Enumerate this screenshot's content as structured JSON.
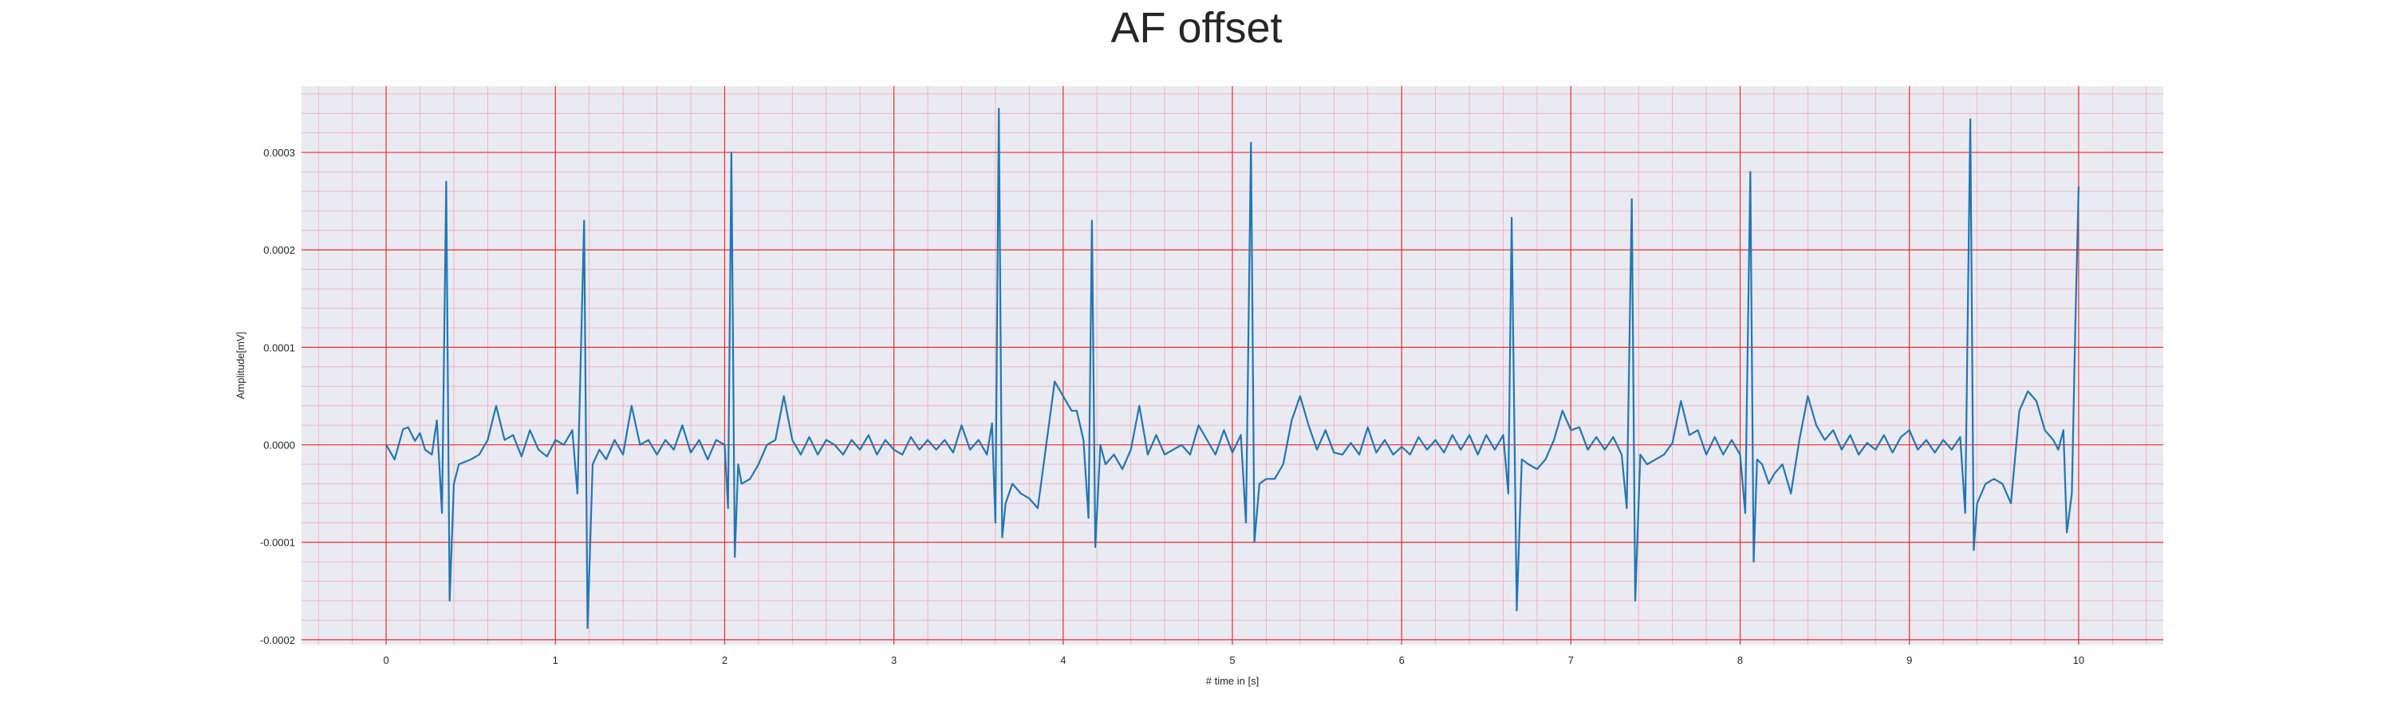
{
  "chart_data": {
    "type": "line",
    "title": "AF offset",
    "xlabel": "# time in [s]",
    "ylabel": "Amplitude[mV]",
    "xlim": [
      -0.5,
      10.5
    ],
    "ylim": [
      -0.000205,
      0.000368
    ],
    "x_ticks": [
      0,
      1,
      2,
      3,
      4,
      5,
      6,
      7,
      8,
      9,
      10
    ],
    "x_tick_labels": [
      "0",
      "1",
      "2",
      "3",
      "4",
      "5",
      "6",
      "7",
      "8",
      "9",
      "10"
    ],
    "y_ticks": [
      -0.0002,
      -0.0001,
      0.0,
      0.0001,
      0.0002,
      0.0003
    ],
    "y_tick_labels": [
      "-0.0002",
      "-0.0001",
      "0.0000",
      "0.0001",
      "0.0002",
      "0.0003"
    ],
    "grid": "major and minor",
    "colors": {
      "background": "#eaeaf2",
      "major_grid": "#e8302b",
      "minor_grid": "#f2a9b4",
      "line": "#1f77b4",
      "text": "#262626"
    },
    "series": [
      {
        "values": [
          [
            0.0,
            0.0
          ],
          [
            0.05,
            -1.5e-05
          ],
          [
            0.1,
            1.6e-05
          ],
          [
            0.13,
            1.8e-05
          ],
          [
            0.17,
            4e-06
          ],
          [
            0.2,
            1.2e-05
          ],
          [
            0.23,
            -5e-06
          ],
          [
            0.27,
            -1e-05
          ],
          [
            0.3,
            2.5e-05
          ],
          [
            0.33,
            -7e-05
          ],
          [
            0.355,
            0.00027
          ],
          [
            0.375,
            -0.00016
          ],
          [
            0.4,
            -4e-05
          ],
          [
            0.43,
            -2e-05
          ],
          [
            0.5,
            -1.5e-05
          ],
          [
            0.55,
            -1e-05
          ],
          [
            0.6,
            5e-06
          ],
          [
            0.65,
            4e-05
          ],
          [
            0.7,
            5e-06
          ],
          [
            0.75,
            1e-05
          ],
          [
            0.8,
            -1.2e-05
          ],
          [
            0.85,
            1.5e-05
          ],
          [
            0.9,
            -5e-06
          ],
          [
            0.95,
            -1.2e-05
          ],
          [
            1.0,
            5e-06
          ],
          [
            1.05,
            0.0
          ],
          [
            1.1,
            1.5e-05
          ],
          [
            1.13,
            -5e-05
          ],
          [
            1.17,
            0.00023
          ],
          [
            1.19,
            -0.000188
          ],
          [
            1.22,
            -2e-05
          ],
          [
            1.26,
            -5e-06
          ],
          [
            1.3,
            -1.5e-05
          ],
          [
            1.35,
            5e-06
          ],
          [
            1.4,
            -1e-05
          ],
          [
            1.45,
            4e-05
          ],
          [
            1.5,
            0.0
          ],
          [
            1.55,
            5e-06
          ],
          [
            1.6,
            -1e-05
          ],
          [
            1.65,
            5e-06
          ],
          [
            1.7,
            -5e-06
          ],
          [
            1.75,
            2e-05
          ],
          [
            1.8,
            -8e-06
          ],
          [
            1.85,
            5e-06
          ],
          [
            1.9,
            -1.5e-05
          ],
          [
            1.95,
            5e-06
          ],
          [
            2.0,
            0.0
          ],
          [
            2.02,
            -6.5e-05
          ],
          [
            2.04,
            0.0003
          ],
          [
            2.06,
            -0.000115
          ],
          [
            2.08,
            -2e-05
          ],
          [
            2.1,
            -4e-05
          ],
          [
            2.15,
            -3.5e-05
          ],
          [
            2.2,
            -2e-05
          ],
          [
            2.25,
            0.0
          ],
          [
            2.3,
            5e-06
          ],
          [
            2.35,
            5e-05
          ],
          [
            2.4,
            5e-06
          ],
          [
            2.45,
            -1e-05
          ],
          [
            2.5,
            8e-06
          ],
          [
            2.55,
            -1e-05
          ],
          [
            2.6,
            5e-06
          ],
          [
            2.65,
            0.0
          ],
          [
            2.7,
            -1e-05
          ],
          [
            2.75,
            5e-06
          ],
          [
            2.8,
            -5e-06
          ],
          [
            2.85,
            1e-05
          ],
          [
            2.9,
            -1e-05
          ],
          [
            2.95,
            5e-06
          ],
          [
            3.0,
            -5e-06
          ],
          [
            3.05,
            -1e-05
          ],
          [
            3.1,
            8e-06
          ],
          [
            3.15,
            -5e-06
          ],
          [
            3.2,
            5e-06
          ],
          [
            3.25,
            -5e-06
          ],
          [
            3.3,
            5e-06
          ],
          [
            3.35,
            -8e-06
          ],
          [
            3.4,
            2e-05
          ],
          [
            3.45,
            -5e-06
          ],
          [
            3.5,
            5e-06
          ],
          [
            3.55,
            -1e-05
          ],
          [
            3.58,
            2.2e-05
          ],
          [
            3.6,
            -8e-05
          ],
          [
            3.62,
            0.000345
          ],
          [
            3.64,
            -9.5e-05
          ],
          [
            3.66,
            -6e-05
          ],
          [
            3.7,
            -4e-05
          ],
          [
            3.75,
            -5e-05
          ],
          [
            3.8,
            -5.5e-05
          ],
          [
            3.85,
            -6.5e-05
          ],
          [
            3.9,
            0.0
          ],
          [
            3.95,
            6.5e-05
          ],
          [
            4.0,
            5e-05
          ],
          [
            4.05,
            3.5e-05
          ],
          [
            4.08,
            3.5e-05
          ],
          [
            4.12,
            5e-06
          ],
          [
            4.15,
            -7.5e-05
          ],
          [
            4.17,
            0.00023
          ],
          [
            4.19,
            -0.000105
          ],
          [
            4.22,
            0.0
          ],
          [
            4.25,
            -2e-05
          ],
          [
            4.3,
            -1e-05
          ],
          [
            4.35,
            -2.5e-05
          ],
          [
            4.4,
            -5e-06
          ],
          [
            4.45,
            4e-05
          ],
          [
            4.5,
            -1e-05
          ],
          [
            4.55,
            1e-05
          ],
          [
            4.6,
            -1e-05
          ],
          [
            4.65,
            -5e-06
          ],
          [
            4.7,
            0.0
          ],
          [
            4.75,
            -1e-05
          ],
          [
            4.8,
            2e-05
          ],
          [
            4.85,
            5e-06
          ],
          [
            4.9,
            -1e-05
          ],
          [
            4.95,
            1.5e-05
          ],
          [
            5.0,
            -8e-06
          ],
          [
            5.05,
            1e-05
          ],
          [
            5.08,
            -8e-05
          ],
          [
            5.11,
            0.00031
          ],
          [
            5.13,
            -0.0001
          ],
          [
            5.16,
            -4e-05
          ],
          [
            5.2,
            -3.5e-05
          ],
          [
            5.25,
            -3.5e-05
          ],
          [
            5.3,
            -2e-05
          ],
          [
            5.35,
            2.5e-05
          ],
          [
            5.4,
            5e-05
          ],
          [
            5.45,
            2e-05
          ],
          [
            5.5,
            -5e-06
          ],
          [
            5.55,
            1.5e-05
          ],
          [
            5.6,
            -8e-06
          ],
          [
            5.65,
            -1e-05
          ],
          [
            5.7,
            2e-06
          ],
          [
            5.75,
            -1e-05
          ],
          [
            5.8,
            1.8e-05
          ],
          [
            5.85,
            -8e-06
          ],
          [
            5.9,
            5e-06
          ],
          [
            5.95,
            -1e-05
          ],
          [
            6.0,
            -2e-06
          ],
          [
            6.05,
            -1e-05
          ],
          [
            6.1,
            8e-06
          ],
          [
            6.15,
            -5e-06
          ],
          [
            6.2,
            5e-06
          ],
          [
            6.25,
            -8e-06
          ],
          [
            6.3,
            1e-05
          ],
          [
            6.35,
            -5e-06
          ],
          [
            6.4,
            1e-05
          ],
          [
            6.45,
            -1e-05
          ],
          [
            6.5,
            1e-05
          ],
          [
            6.55,
            -5e-06
          ],
          [
            6.6,
            1e-05
          ],
          [
            6.63,
            -5e-05
          ],
          [
            6.65,
            0.000233
          ],
          [
            6.68,
            -0.00017
          ],
          [
            6.71,
            -1.5e-05
          ],
          [
            6.75,
            -2e-05
          ],
          [
            6.8,
            -2.5e-05
          ],
          [
            6.85,
            -1.5e-05
          ],
          [
            6.9,
            5e-06
          ],
          [
            6.95,
            3.5e-05
          ],
          [
            7.0,
            1.5e-05
          ],
          [
            7.05,
            1.8e-05
          ],
          [
            7.1,
            -5e-06
          ],
          [
            7.15,
            8e-06
          ],
          [
            7.2,
            -5e-06
          ],
          [
            7.25,
            8e-06
          ],
          [
            7.3,
            -1e-05
          ],
          [
            7.33,
            -6.5e-05
          ],
          [
            7.36,
            0.000252
          ],
          [
            7.38,
            -0.00016
          ],
          [
            7.41,
            -1e-05
          ],
          [
            7.45,
            -2e-05
          ],
          [
            7.5,
            -1.5e-05
          ],
          [
            7.55,
            -1e-05
          ],
          [
            7.6,
            2e-06
          ],
          [
            7.65,
            4.5e-05
          ],
          [
            7.7,
            1e-05
          ],
          [
            7.75,
            1.5e-05
          ],
          [
            7.8,
            -1e-05
          ],
          [
            7.85,
            8e-06
          ],
          [
            7.9,
            -1e-05
          ],
          [
            7.95,
            5e-06
          ],
          [
            8.0,
            -1e-05
          ],
          [
            8.03,
            -7e-05
          ],
          [
            8.06,
            0.00028
          ],
          [
            8.08,
            -0.00012
          ],
          [
            8.1,
            -1.5e-05
          ],
          [
            8.13,
            -2e-05
          ],
          [
            8.17,
            -4e-05
          ],
          [
            8.2,
            -3e-05
          ],
          [
            8.25,
            -2e-05
          ],
          [
            8.3,
            -5e-05
          ],
          [
            8.35,
            5e-06
          ],
          [
            8.4,
            5e-05
          ],
          [
            8.45,
            2e-05
          ],
          [
            8.5,
            5e-06
          ],
          [
            8.55,
            1.5e-05
          ],
          [
            8.6,
            -5e-06
          ],
          [
            8.65,
            1e-05
          ],
          [
            8.7,
            -1e-05
          ],
          [
            8.75,
            2e-06
          ],
          [
            8.8,
            -5e-06
          ],
          [
            8.85,
            1e-05
          ],
          [
            8.9,
            -8e-06
          ],
          [
            8.95,
            8e-06
          ],
          [
            9.0,
            1.5e-05
          ],
          [
            9.05,
            -5e-06
          ],
          [
            9.1,
            5e-06
          ],
          [
            9.15,
            -8e-06
          ],
          [
            9.2,
            5e-06
          ],
          [
            9.25,
            -5e-06
          ],
          [
            9.3,
            8e-06
          ],
          [
            9.33,
            -7e-05
          ],
          [
            9.36,
            0.000334
          ],
          [
            9.38,
            -0.000108
          ],
          [
            9.4,
            -6e-05
          ],
          [
            9.45,
            -4e-05
          ],
          [
            9.5,
            -3.5e-05
          ],
          [
            9.55,
            -4e-05
          ],
          [
            9.6,
            -6e-05
          ],
          [
            9.65,
            3.5e-05
          ],
          [
            9.7,
            5.5e-05
          ],
          [
            9.75,
            4.5e-05
          ],
          [
            9.8,
            1.5e-05
          ],
          [
            9.85,
            5e-06
          ],
          [
            9.88,
            -5e-06
          ],
          [
            9.91,
            1.5e-05
          ],
          [
            9.93,
            -9e-05
          ],
          [
            9.96,
            -5e-05
          ],
          [
            9.98,
            0.00012
          ],
          [
            10.0,
            0.000265
          ]
        ]
      }
    ]
  }
}
